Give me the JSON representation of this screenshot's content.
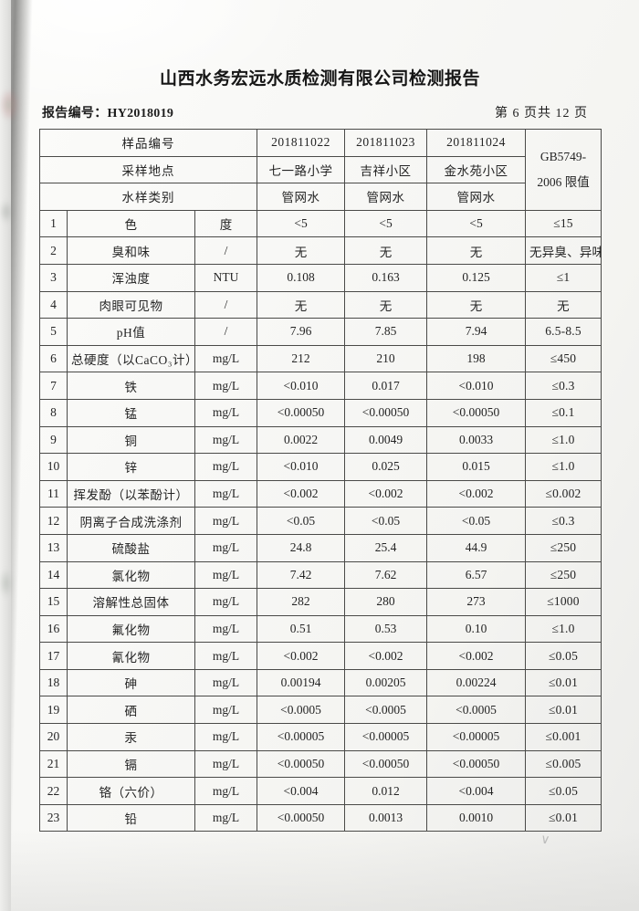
{
  "report": {
    "title": "山西水务宏远水质检测有限公司检测报告",
    "report_no_label": "报告编号：",
    "report_no": "HY2018019",
    "page_info": "第 6 页共 12 页"
  },
  "table": {
    "header": {
      "sample_no_label": "样品编号",
      "sample_nos": [
        "201811022",
        "201811023",
        "201811024"
      ],
      "location_label": "采样地点",
      "locations": [
        "七一路小学",
        "吉祥小区",
        "金水苑小区"
      ],
      "type_label": "水样类别",
      "types": [
        "管网水",
        "管网水",
        "管网水"
      ],
      "limit_header_line1": "GB5749-",
      "limit_header_line2": "2006 限值"
    },
    "rows": [
      [
        "1",
        "色",
        "度",
        "<5",
        "<5",
        "<5",
        "≤15"
      ],
      [
        "2",
        "臭和味",
        "/",
        "无",
        "无",
        "无",
        "无异臭、异味"
      ],
      [
        "3",
        "浑浊度",
        "NTU",
        "0.108",
        "0.163",
        "0.125",
        "≤1"
      ],
      [
        "4",
        "肉眼可见物",
        "/",
        "无",
        "无",
        "无",
        "无"
      ],
      [
        "5",
        "pH值",
        "/",
        "7.96",
        "7.85",
        "7.94",
        "6.5-8.5"
      ],
      [
        "6",
        "总硬度（以CaCO₃计）",
        "mg/L",
        "212",
        "210",
        "198",
        "≤450"
      ],
      [
        "7",
        "铁",
        "mg/L",
        "<0.010",
        "0.017",
        "<0.010",
        "≤0.3"
      ],
      [
        "8",
        "锰",
        "mg/L",
        "<0.00050",
        "<0.00050",
        "<0.00050",
        "≤0.1"
      ],
      [
        "9",
        "铜",
        "mg/L",
        "0.0022",
        "0.0049",
        "0.0033",
        "≤1.0"
      ],
      [
        "10",
        "锌",
        "mg/L",
        "<0.010",
        "0.025",
        "0.015",
        "≤1.0"
      ],
      [
        "11",
        "挥发酚（以苯酚计）",
        "mg/L",
        "<0.002",
        "<0.002",
        "<0.002",
        "≤0.002"
      ],
      [
        "12",
        "阴离子合成洗涤剂",
        "mg/L",
        "<0.05",
        "<0.05",
        "<0.05",
        "≤0.3"
      ],
      [
        "13",
        "硫酸盐",
        "mg/L",
        "24.8",
        "25.4",
        "44.9",
        "≤250"
      ],
      [
        "14",
        "氯化物",
        "mg/L",
        "7.42",
        "7.62",
        "6.57",
        "≤250"
      ],
      [
        "15",
        "溶解性总固体",
        "mg/L",
        "282",
        "280",
        "273",
        "≤1000"
      ],
      [
        "16",
        "氟化物",
        "mg/L",
        "0.51",
        "0.53",
        "0.10",
        "≤1.0"
      ],
      [
        "17",
        "氰化物",
        "mg/L",
        "<0.002",
        "<0.002",
        "<0.002",
        "≤0.05"
      ],
      [
        "18",
        "砷",
        "mg/L",
        "0.00194",
        "0.00205",
        "0.00224",
        "≤0.01"
      ],
      [
        "19",
        "硒",
        "mg/L",
        "<0.0005",
        "<0.0005",
        "<0.0005",
        "≤0.01"
      ],
      [
        "20",
        "汞",
        "mg/L",
        "<0.00005",
        "<0.00005",
        "<0.00005",
        "≤0.001"
      ],
      [
        "21",
        "镉",
        "mg/L",
        "<0.00050",
        "<0.00050",
        "<0.00050",
        "≤0.005"
      ],
      [
        "22",
        "铬（六价）",
        "mg/L",
        "<0.004",
        "0.012",
        "<0.004",
        "≤0.05"
      ],
      [
        "23",
        "铅",
        "mg/L",
        "<0.00050",
        "0.0013",
        "0.0010",
        "≤0.01"
      ]
    ]
  }
}
